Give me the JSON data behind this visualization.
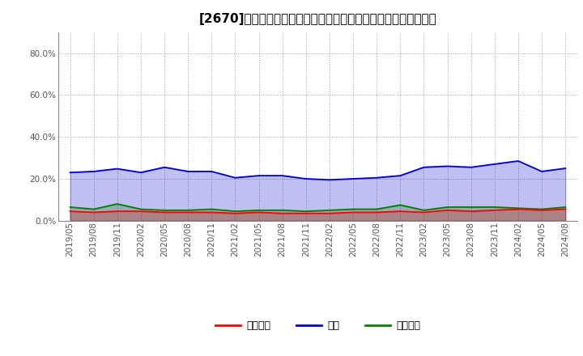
{
  "title": "[2670]　売上債権、在庫、買入債務の総資産に対する比率の推移",
  "dates": [
    "2019/05",
    "2019/08",
    "2019/11",
    "2020/02",
    "2020/05",
    "2020/08",
    "2020/11",
    "2021/02",
    "2021/05",
    "2021/08",
    "2021/11",
    "2022/02",
    "2022/05",
    "2022/08",
    "2022/11",
    "2023/02",
    "2023/05",
    "2023/08",
    "2023/11",
    "2024/02",
    "2024/05",
    "2024/08"
  ],
  "inventory": [
    23.0,
    23.5,
    24.8,
    23.0,
    25.5,
    23.5,
    23.5,
    20.5,
    21.5,
    21.5,
    20.0,
    19.5,
    20.0,
    20.5,
    21.5,
    25.5,
    26.0,
    25.5,
    27.0,
    28.5,
    23.5,
    25.0
  ],
  "receivables": [
    4.5,
    4.0,
    4.5,
    4.5,
    4.0,
    4.0,
    4.0,
    3.5,
    4.0,
    3.5,
    3.5,
    3.5,
    4.0,
    4.0,
    4.5,
    4.0,
    5.0,
    4.5,
    5.0,
    5.5,
    5.0,
    5.5
  ],
  "payables": [
    6.5,
    5.5,
    8.0,
    5.5,
    5.0,
    5.0,
    5.5,
    4.5,
    5.0,
    5.0,
    4.5,
    5.0,
    5.5,
    5.5,
    7.5,
    5.0,
    6.5,
    6.5,
    6.5,
    6.0,
    5.5,
    6.5
  ],
  "ylim": [
    0,
    90
  ],
  "yticks": [
    0,
    20,
    40,
    60,
    80
  ],
  "ytick_labels": [
    "0.0%",
    "20.0%",
    "40.0%",
    "60.0%",
    "80.0%"
  ],
  "color_receivables": "#FF0000",
  "color_inventory": "#0000CC",
  "color_payables": "#008000",
  "legend_receivables": "売上債権",
  "legend_inventory": "在庫",
  "legend_payables": "買入債務",
  "bg_color": "#FFFFFF",
  "grid_color": "#999999",
  "title_fontsize": 11,
  "tick_fontsize": 7.5,
  "legend_fontsize": 9
}
